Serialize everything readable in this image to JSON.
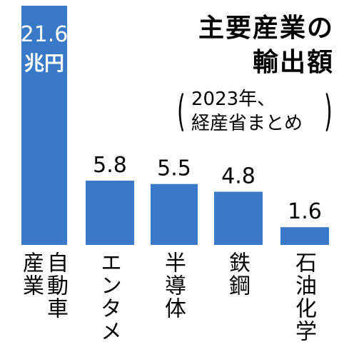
{
  "chart_data": {
    "type": "bar",
    "title_line1": "主要産業の",
    "title_line2": "輸出額",
    "source_line1": "2023年、",
    "source_line2": "経産省まとめ",
    "unit": "兆円",
    "categories": [
      "自動車産業",
      "エンタメ",
      "半導体",
      "鉄鋼",
      "石油化学"
    ],
    "category_label_lines": [
      [
        "自動車",
        "産業"
      ],
      [
        "エンタメ"
      ],
      [
        "半導体"
      ],
      [
        "鉄鋼"
      ],
      [
        "石油化学"
      ]
    ],
    "values": [
      21.6,
      5.8,
      5.5,
      4.8,
      1.6
    ],
    "value_labels": [
      "21.6",
      "5.8",
      "5.5",
      "4.8",
      "1.6"
    ],
    "ylim": [
      0,
      21.6
    ],
    "bar_color": "#3a78c8",
    "grid": false
  }
}
